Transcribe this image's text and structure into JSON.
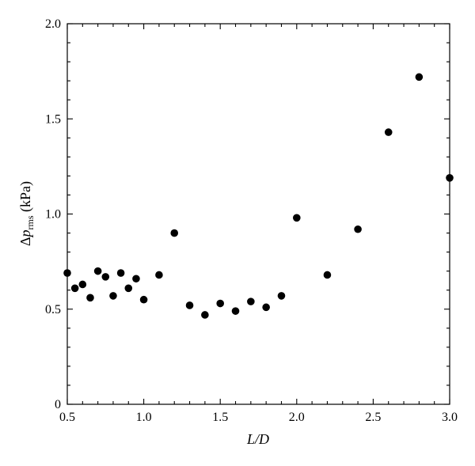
{
  "chart_data": {
    "type": "scatter",
    "title": "",
    "xlabel_italic_parts": [
      "L",
      "/",
      "D"
    ],
    "ylabel_parts": {
      "delta": "Δ",
      "var": "p",
      "sub": "rms",
      "unit": " (kPa)"
    },
    "xlim": [
      0.5,
      3.0
    ],
    "ylim": [
      0,
      2.0
    ],
    "xticks": [
      0.5,
      1.0,
      1.5,
      2.0,
      2.5,
      3.0
    ],
    "xtick_labels": [
      "0.5",
      "1.0",
      "1.5",
      "2.0",
      "2.5",
      "3.0"
    ],
    "yticks": [
      0,
      0.5,
      1.0,
      1.5,
      2.0
    ],
    "ytick_labels": [
      "0",
      "0.5",
      "1.0",
      "1.5",
      "2.0"
    ],
    "grid": false,
    "legend": "none",
    "marker_color": "#000000",
    "points": [
      {
        "x": 0.5,
        "y": 0.69
      },
      {
        "x": 0.55,
        "y": 0.61
      },
      {
        "x": 0.6,
        "y": 0.63
      },
      {
        "x": 0.65,
        "y": 0.56
      },
      {
        "x": 0.7,
        "y": 0.7
      },
      {
        "x": 0.75,
        "y": 0.67
      },
      {
        "x": 0.8,
        "y": 0.57
      },
      {
        "x": 0.85,
        "y": 0.69
      },
      {
        "x": 0.9,
        "y": 0.61
      },
      {
        "x": 0.95,
        "y": 0.66
      },
      {
        "x": 1.0,
        "y": 0.55
      },
      {
        "x": 1.1,
        "y": 0.68
      },
      {
        "x": 1.2,
        "y": 0.9
      },
      {
        "x": 1.3,
        "y": 0.52
      },
      {
        "x": 1.4,
        "y": 0.47
      },
      {
        "x": 1.5,
        "y": 0.53
      },
      {
        "x": 1.6,
        "y": 0.49
      },
      {
        "x": 1.7,
        "y": 0.54
      },
      {
        "x": 1.8,
        "y": 0.51
      },
      {
        "x": 1.9,
        "y": 0.57
      },
      {
        "x": 2.0,
        "y": 0.98
      },
      {
        "x": 2.2,
        "y": 0.68
      },
      {
        "x": 2.4,
        "y": 0.92
      },
      {
        "x": 2.6,
        "y": 1.43
      },
      {
        "x": 2.8,
        "y": 1.72
      },
      {
        "x": 3.0,
        "y": 1.19
      }
    ]
  }
}
